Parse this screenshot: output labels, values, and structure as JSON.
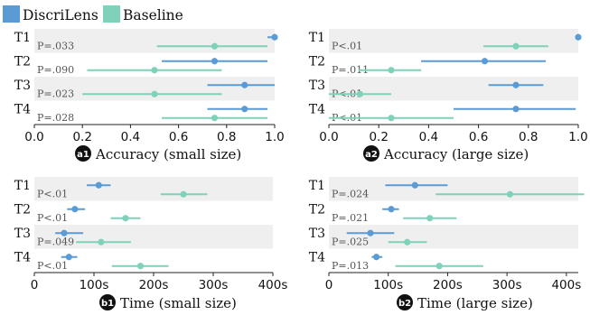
{
  "legend": [
    {
      "label": "DiscriLens",
      "color": "#5b9bd5"
    },
    {
      "label": "Baseline",
      "color": "#7fd1b9"
    }
  ],
  "chart_data": [
    {
      "type": "scatter",
      "id": "a1",
      "badge": "a1",
      "title": "Accuracy (small size)",
      "xlim": [
        0.0,
        1.0
      ],
      "xticks": [
        "0.0",
        "0.2",
        "0.4",
        "0.6",
        "0.8",
        "1.0"
      ],
      "tasks": [
        "T1",
        "T2",
        "T3",
        "T4"
      ],
      "pvalues": [
        "P=.033",
        "P=.090",
        "P=.023",
        "P=.028"
      ],
      "series": [
        {
          "name": "DiscriLens",
          "values": [
            1.0,
            0.75,
            0.875,
            0.875
          ],
          "ci_low": [
            0.97,
            0.53,
            0.72,
            0.72
          ],
          "ci_high": [
            1.0,
            0.97,
            1.0,
            0.97
          ]
        },
        {
          "name": "Baseline",
          "values": [
            0.75,
            0.5,
            0.5,
            0.75
          ],
          "ci_low": [
            0.51,
            0.22,
            0.2,
            0.53
          ],
          "ci_high": [
            0.97,
            0.78,
            0.78,
            0.97
          ]
        }
      ]
    },
    {
      "type": "scatter",
      "id": "a2",
      "badge": "a2",
      "title": "Accuracy (large size)",
      "xlim": [
        0.0,
        1.0
      ],
      "xticks": [
        "0.0",
        "0.2",
        "0.4",
        "0.6",
        "0.8",
        "1.0"
      ],
      "tasks": [
        "T1",
        "T2",
        "T3",
        "T4"
      ],
      "pvalues": [
        "P<.01",
        "P=.011",
        "P<.01",
        "P<.01"
      ],
      "series": [
        {
          "name": "DiscriLens",
          "values": [
            1.0,
            0.625,
            0.75,
            0.75
          ],
          "ci_low": [
            1.0,
            0.37,
            0.64,
            0.5
          ],
          "ci_high": [
            1.0,
            0.87,
            0.86,
            0.99
          ]
        },
        {
          "name": "Baseline",
          "values": [
            0.75,
            0.25,
            0.125,
            0.25
          ],
          "ci_low": [
            0.62,
            0.12,
            0.0,
            0.0
          ],
          "ci_high": [
            0.88,
            0.37,
            0.25,
            0.5
          ]
        }
      ]
    },
    {
      "type": "scatter",
      "id": "b1",
      "badge": "b1",
      "title": "Time (small size)",
      "xlim": [
        0,
        400
      ],
      "xticks": [
        "0",
        "100s",
        "200s",
        "300s",
        "400s"
      ],
      "tasks": [
        "T1",
        "T2",
        "T3",
        "T4"
      ],
      "pvalues": [
        "P<.01",
        "P<.01",
        "P=.049",
        "P<.01"
      ],
      "series": [
        {
          "name": "DiscriLens",
          "values": [
            108,
            68,
            50,
            58
          ],
          "ci_low": [
            88,
            55,
            35,
            45
          ],
          "ci_high": [
            128,
            85,
            82,
            72
          ]
        },
        {
          "name": "Baseline",
          "values": [
            250,
            153,
            112,
            178
          ],
          "ci_low": [
            212,
            128,
            70,
            130
          ],
          "ci_high": [
            290,
            178,
            162,
            225
          ]
        }
      ]
    },
    {
      "type": "scatter",
      "id": "b2",
      "badge": "b2",
      "title": "Time (large size)",
      "xlim": [
        0,
        420
      ],
      "xticks": [
        "0",
        "100s",
        "200s",
        "300s",
        "400s"
      ],
      "tasks": [
        "T1",
        "T2",
        "T3",
        "T4"
      ],
      "pvalues": [
        "P=.024",
        "P=.021",
        "P=.025",
        "P=.013"
      ],
      "series": [
        {
          "name": "DiscriLens",
          "values": [
            145,
            105,
            70,
            80
          ],
          "ci_low": [
            95,
            90,
            30,
            72
          ],
          "ci_high": [
            200,
            118,
            110,
            90
          ]
        },
        {
          "name": "Baseline",
          "values": [
            305,
            170,
            132,
            186
          ],
          "ci_low": [
            180,
            125,
            100,
            112
          ],
          "ci_high": [
            430,
            215,
            165,
            260
          ]
        }
      ]
    }
  ]
}
